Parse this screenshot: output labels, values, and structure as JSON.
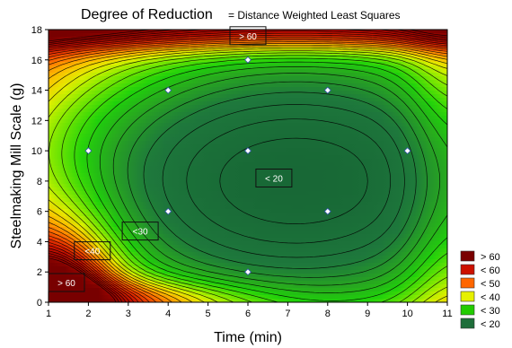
{
  "chart_data": {
    "type": "contour",
    "title": "Degree of Reduction",
    "subtitle": "= Distance Weighted Least Squares",
    "xlabel": "Time (min)",
    "ylabel": "Steelmaking Mill Scale (g)",
    "xlim": [
      1,
      11
    ],
    "ylim": [
      0,
      18
    ],
    "xticks": [
      "1",
      "2",
      "3",
      "4",
      "5",
      "6",
      "7",
      "8",
      "9",
      "10",
      "11"
    ],
    "yticks": [
      "0",
      "2",
      "4",
      "6",
      "8",
      "10",
      "12",
      "14",
      "16",
      "18"
    ],
    "grid": false,
    "legend_position": "bottom-right",
    "legend": [
      {
        "label": "> 60",
        "color": "#7a0000"
      },
      {
        "label": "< 60",
        "color": "#cc1100"
      },
      {
        "label": "< 50",
        "color": "#ff6600"
      },
      {
        "label": "< 40",
        "color": "#e6f000"
      },
      {
        "label": "< 30",
        "color": "#22cc00"
      },
      {
        "label": "< 20",
        "color": "#1e6e3a"
      }
    ],
    "points": [
      {
        "x": 6,
        "y": 16
      },
      {
        "x": 4,
        "y": 14
      },
      {
        "x": 8,
        "y": 14
      },
      {
        "x": 2,
        "y": 10
      },
      {
        "x": 6,
        "y": 10
      },
      {
        "x": 10,
        "y": 10
      },
      {
        "x": 4,
        "y": 6
      },
      {
        "x": 8,
        "y": 6
      },
      {
        "x": 6,
        "y": 2
      }
    ],
    "annotations": [
      {
        "text": "> 60",
        "x": 6.0,
        "y": 17.6
      },
      {
        "text": "< 20",
        "x": 6.65,
        "y": 8.2
      },
      {
        "text": "<30",
        "x": 3.3,
        "y": 4.7
      },
      {
        "text": "<40",
        "x": 2.1,
        "y": 3.4
      },
      {
        "text": "> 60",
        "x": 1.45,
        "y": 1.3
      }
    ]
  }
}
